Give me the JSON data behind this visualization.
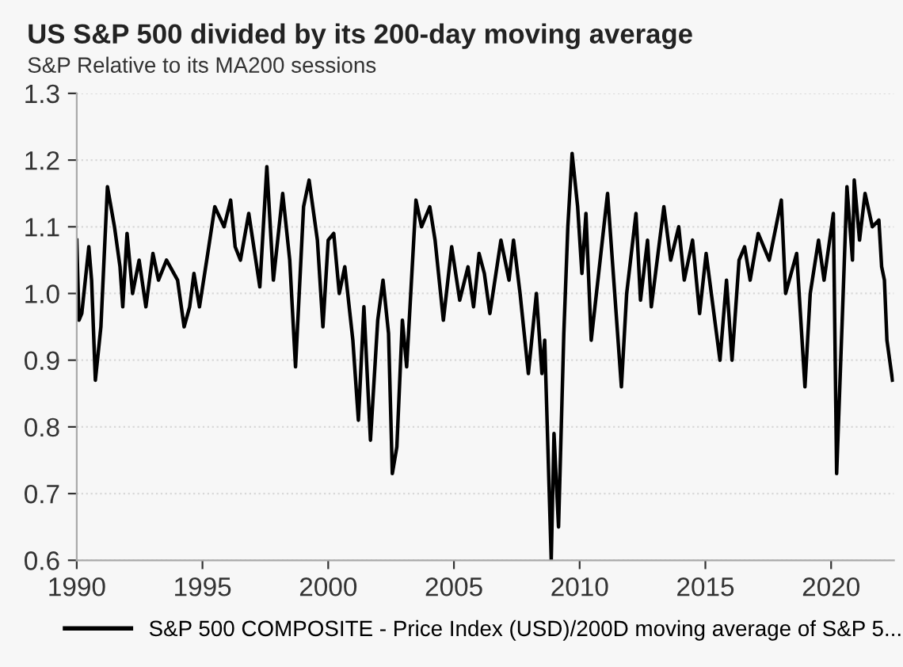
{
  "chart_data": {
    "type": "line",
    "title": "US S&P 500 divided by its 200-day moving average",
    "subtitle": "S&P Relative to its MA200 sessions",
    "xlim": [
      1990,
      2022.5
    ],
    "xticks": [
      1990,
      1995,
      2000,
      2005,
      2010,
      2015,
      2020
    ],
    "ylim": [
      0.6,
      1.3
    ],
    "yticks": [
      {
        "value": 0.6,
        "label": "0.6"
      },
      {
        "value": 0.7,
        "label": "0.7"
      },
      {
        "value": 0.8,
        "label": "0.8"
      },
      {
        "value": 0.9,
        "label": "0.9"
      },
      {
        "value": 1.0,
        "label": "1.0"
      },
      {
        "value": 1.1,
        "label": "1.1"
      },
      {
        "value": 1.2,
        "label": "1.2"
      },
      {
        "value": 1.3,
        "label": "1.3"
      }
    ],
    "grid": "y",
    "legend": "bottom",
    "marker": "none",
    "line_style": "solid",
    "series": [
      {
        "name": "S&P 500 COMPOSITE - Price Index (USD)/200D moving average of S&P 5...",
        "color": "#000000",
        "x": [
          1990.0,
          1990.09,
          1990.2,
          1990.48,
          1990.59,
          1990.74,
          1990.96,
          1991.22,
          1991.5,
          1991.72,
          1991.83,
          1992.0,
          1992.22,
          1992.48,
          1992.75,
          1993.03,
          1993.25,
          1993.57,
          1994.01,
          1994.27,
          1994.49,
          1994.66,
          1994.88,
          1995.21,
          1995.49,
          1995.86,
          1996.12,
          1996.3,
          1996.51,
          1996.84,
          1997.28,
          1997.56,
          1997.82,
          1998.19,
          1998.47,
          1998.7,
          1999.02,
          1999.24,
          1999.57,
          1999.79,
          2000.0,
          2000.22,
          2000.44,
          2000.66,
          2000.98,
          2001.2,
          2001.42,
          2001.68,
          2001.97,
          2002.18,
          2002.4,
          2002.55,
          2002.73,
          2002.95,
          2003.12,
          2003.49,
          2003.71,
          2004.04,
          2004.25,
          2004.58,
          2004.91,
          2005.23,
          2005.56,
          2005.78,
          2006.0,
          2006.21,
          2006.43,
          2006.87,
          2007.19,
          2007.37,
          2007.63,
          2007.96,
          2008.28,
          2008.5,
          2008.61,
          2008.87,
          2008.98,
          2009.16,
          2009.37,
          2009.53,
          2009.7,
          2009.92,
          2010.09,
          2010.25,
          2010.46,
          2011.11,
          2011.66,
          2011.87,
          2012.24,
          2012.42,
          2012.7,
          2012.85,
          2013.35,
          2013.62,
          2013.94,
          2014.16,
          2014.49,
          2014.77,
          2015.03,
          2015.58,
          2015.84,
          2016.06,
          2016.34,
          2016.56,
          2016.78,
          2017.1,
          2017.54,
          2018.02,
          2018.19,
          2018.63,
          2018.96,
          2019.17,
          2019.5,
          2019.72,
          2020.09,
          2020.22,
          2020.48,
          2020.63,
          2020.85,
          2020.92,
          2021.13,
          2021.35,
          2021.64,
          2021.9,
          2022.01,
          2022.12,
          2022.22,
          2022.44
        ],
        "values": [
          1.08,
          0.96,
          0.97,
          1.07,
          1.02,
          0.87,
          0.95,
          1.16,
          1.1,
          1.04,
          0.98,
          1.09,
          1.0,
          1.05,
          0.98,
          1.06,
          1.02,
          1.05,
          1.02,
          0.95,
          0.98,
          1.03,
          0.98,
          1.06,
          1.13,
          1.1,
          1.14,
          1.07,
          1.05,
          1.12,
          1.01,
          1.19,
          1.02,
          1.15,
          1.05,
          0.89,
          1.13,
          1.17,
          1.08,
          0.95,
          1.08,
          1.09,
          1.0,
          1.04,
          0.93,
          0.81,
          0.98,
          0.78,
          0.96,
          1.02,
          0.94,
          0.73,
          0.77,
          0.96,
          0.89,
          1.14,
          1.1,
          1.13,
          1.08,
          0.96,
          1.07,
          0.99,
          1.04,
          0.98,
          1.06,
          1.03,
          0.97,
          1.08,
          1.02,
          1.08,
          1.0,
          0.88,
          1.0,
          0.88,
          0.93,
          0.6,
          0.79,
          0.65,
          0.94,
          1.1,
          1.21,
          1.13,
          1.03,
          1.12,
          0.93,
          1.15,
          0.86,
          1.0,
          1.12,
          0.99,
          1.08,
          0.98,
          1.13,
          1.05,
          1.1,
          1.02,
          1.08,
          0.97,
          1.06,
          0.9,
          1.02,
          0.9,
          1.05,
          1.07,
          1.02,
          1.09,
          1.05,
          1.14,
          1.0,
          1.06,
          0.86,
          1.0,
          1.08,
          1.02,
          1.12,
          0.73,
          1.0,
          1.16,
          1.05,
          1.17,
          1.08,
          1.15,
          1.1,
          1.11,
          1.04,
          1.02,
          0.93,
          0.87
        ]
      }
    ]
  }
}
